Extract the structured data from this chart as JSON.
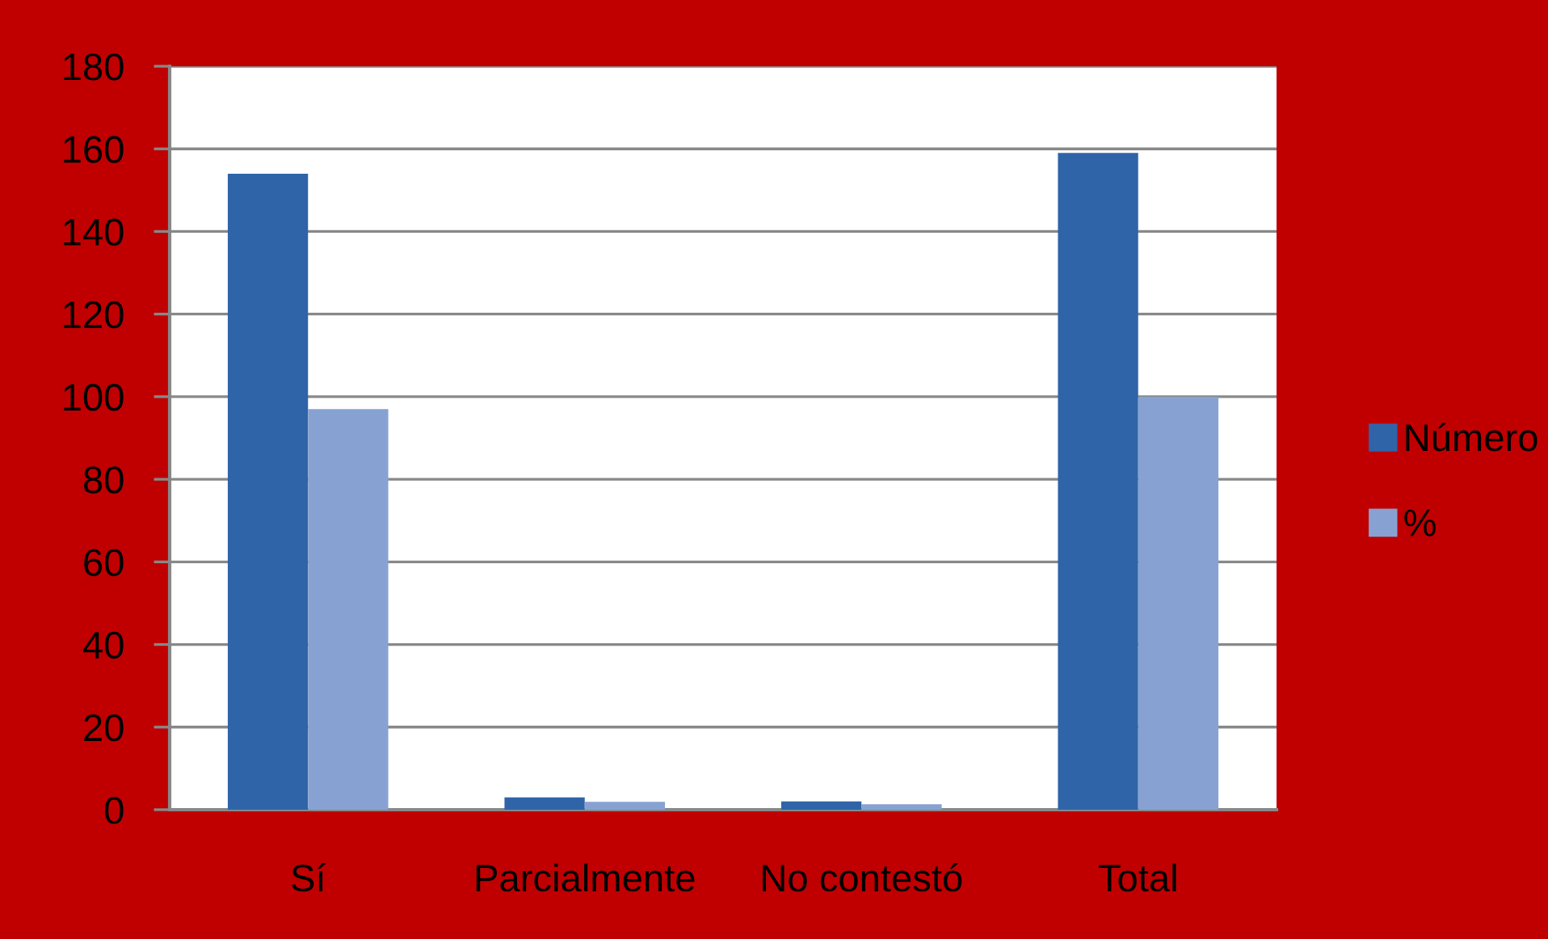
{
  "chart_data": {
    "type": "bar",
    "categories": [
      "Sí",
      "Parcialmente",
      "No contestó",
      "Total"
    ],
    "series": [
      {
        "name": "Número",
        "color": "#2f64a8",
        "values": [
          154,
          3,
          2,
          159
        ]
      },
      {
        "name": "%",
        "color": "#87a2d2",
        "values": [
          97,
          1.9,
          1.3,
          100
        ]
      }
    ],
    "ylim": [
      0,
      180
    ],
    "yticks": [
      0,
      20,
      40,
      60,
      80,
      100,
      120,
      140,
      160,
      180
    ],
    "grid": "y",
    "legend": "right"
  }
}
